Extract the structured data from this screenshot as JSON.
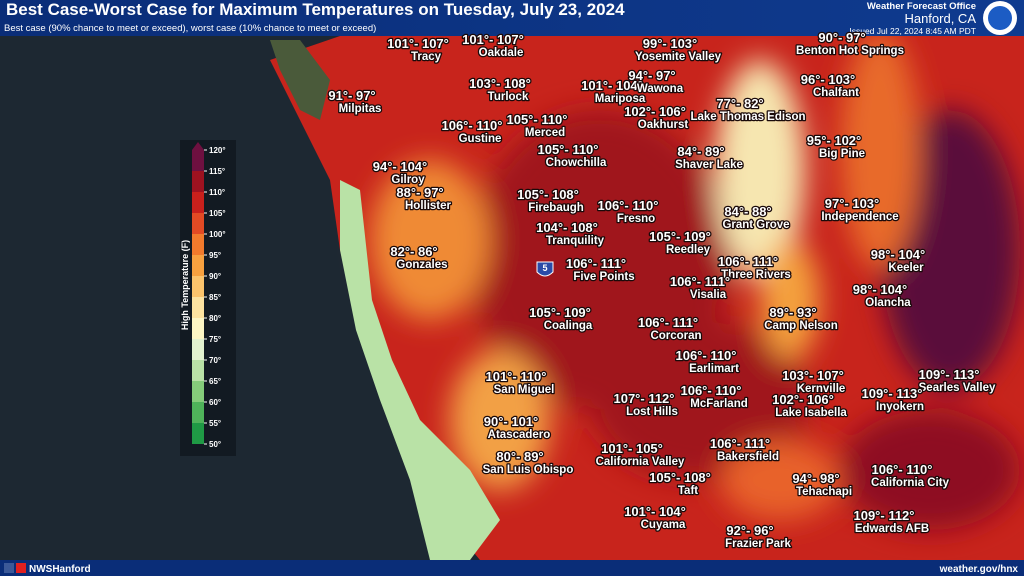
{
  "header": {
    "title": "Best Case-Worst Case for Maximum Temperatures on Tuesday, July 23, 2024",
    "subtitle": "Best case (90% chance to meet or exceed), worst case (10% chance to meet or exceed)",
    "office_line1": "Weather Forecast Office",
    "office_line2": "Hanford, CA",
    "issued": "Issued Jul 22, 2024 8:45 AM PDT"
  },
  "legend": {
    "title": "High Temperature (F)",
    "ticks": [
      {
        "value": 50,
        "label": "50°"
      },
      {
        "value": 55,
        "label": "55°"
      },
      {
        "value": 60,
        "label": "60°"
      },
      {
        "value": 65,
        "label": "65°"
      },
      {
        "value": 70,
        "label": "70°"
      },
      {
        "value": 75,
        "label": "75°"
      },
      {
        "value": 80,
        "label": "80°"
      },
      {
        "value": 85,
        "label": "85°"
      },
      {
        "value": 90,
        "label": "90°"
      },
      {
        "value": 95,
        "label": "95°"
      },
      {
        "value": 100,
        "label": "100°"
      },
      {
        "value": 105,
        "label": "105°"
      },
      {
        "value": 110,
        "label": "110°"
      },
      {
        "value": 115,
        "label": "115°"
      },
      {
        "value": 120,
        "label": "120°"
      }
    ],
    "band_colors": [
      "#1f9a45",
      "#4fb35a",
      "#85cc7a",
      "#b9e2a6",
      "#e3f2cf",
      "#fdf6c4",
      "#fde3a0",
      "#fcc46c",
      "#f8a13f",
      "#f27a2c",
      "#e24a24",
      "#c8201c",
      "#9e1220",
      "#6e1040"
    ]
  },
  "interstate": "5",
  "cities": [
    {
      "range": "101°- 107°",
      "name": "Tracy"
    },
    {
      "range": "101°- 107°",
      "name": "Oakdale"
    },
    {
      "range": "99°- 103°",
      "name": "Yosemite Valley"
    },
    {
      "range": "90°- 97°",
      "name": "Benton Hot Springs"
    },
    {
      "range": "91°- 97°",
      "name": "Milpitas"
    },
    {
      "range": "103°- 108°",
      "name": "Turlock"
    },
    {
      "range": "101°- 104°",
      "name": "Mariposa"
    },
    {
      "range": "94°- 97°",
      "name": "Wawona"
    },
    {
      "range": "96°- 103°",
      "name": "Chalfant"
    },
    {
      "range": "102°- 106°",
      "name": "Oakhurst"
    },
    {
      "range": "77°- 82°",
      "name": "Lake Thomas Edison"
    },
    {
      "range": "106°- 110°",
      "name": "Gustine"
    },
    {
      "range": "105°- 110°",
      "name": "Merced"
    },
    {
      "range": "95°- 102°",
      "name": "Big Pine"
    },
    {
      "range": "105°- 110°",
      "name": "Chowchilla"
    },
    {
      "range": "84°- 89°",
      "name": "Shaver Lake"
    },
    {
      "range": "94°- 104°",
      "name": "Gilroy"
    },
    {
      "range": "88°- 97°",
      "name": "Hollister"
    },
    {
      "range": "105°- 108°",
      "name": "Firebaugh"
    },
    {
      "range": "106°- 110°",
      "name": "Fresno"
    },
    {
      "range": "84°- 88°",
      "name": "Grant Grove"
    },
    {
      "range": "97°- 103°",
      "name": "Independence"
    },
    {
      "range": "104°- 108°",
      "name": "Tranquility"
    },
    {
      "range": "105°- 109°",
      "name": "Reedley"
    },
    {
      "range": "82°- 86°",
      "name": "Gonzales"
    },
    {
      "range": "106°- 111°",
      "name": "Five Points"
    },
    {
      "range": "106°- 111°",
      "name": "Three Rivers"
    },
    {
      "range": "98°- 104°",
      "name": "Keeler"
    },
    {
      "range": "106°- 111°",
      "name": "Visalia"
    },
    {
      "range": "98°- 104°",
      "name": "Olancha"
    },
    {
      "range": "105°- 109°",
      "name": "Coalinga"
    },
    {
      "range": "89°- 93°",
      "name": "Camp Nelson"
    },
    {
      "range": "106°- 111°",
      "name": "Corcoran"
    },
    {
      "range": "106°- 110°",
      "name": "Earlimart"
    },
    {
      "range": "101°- 110°",
      "name": "San Miguel"
    },
    {
      "range": "103°- 107°",
      "name": "Kernville"
    },
    {
      "range": "109°- 113°",
      "name": "Searles Valley"
    },
    {
      "range": "106°- 110°",
      "name": "McFarland"
    },
    {
      "range": "107°- 112°",
      "name": "Lost Hills"
    },
    {
      "range": "102°- 106°",
      "name": "Lake Isabella"
    },
    {
      "range": "109°- 113°",
      "name": "Inyokern"
    },
    {
      "range": "90°- 101°",
      "name": "Atascadero"
    },
    {
      "range": "101°- 105°",
      "name": "California Valley"
    },
    {
      "range": "106°- 111°",
      "name": "Bakersfield"
    },
    {
      "range": "80°- 89°",
      "name": "San Luis Obispo"
    },
    {
      "range": "94°- 98°",
      "name": "Tehachapi"
    },
    {
      "range": "106°- 110°",
      "name": "California City"
    },
    {
      "range": "105°- 108°",
      "name": "Taft"
    },
    {
      "range": "109°- 112°",
      "name": "Edwards AFB"
    },
    {
      "range": "101°- 104°",
      "name": "Cuyama"
    },
    {
      "range": "92°- 96°",
      "name": "Frazier Park"
    }
  ],
  "footer": {
    "social": "NWSHanford",
    "url": "weather.gov/hnx"
  }
}
